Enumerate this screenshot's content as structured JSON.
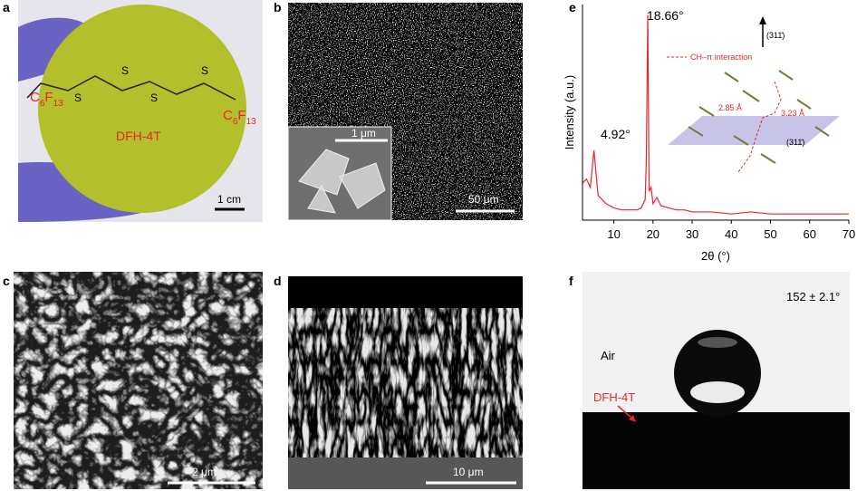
{
  "panels": {
    "a": {
      "label": "a",
      "substituent_left": [
        "C",
        "6",
        "F",
        "13"
      ],
      "substituent_right": [
        "C",
        "6",
        "F",
        "13"
      ],
      "sulfur": [
        "S",
        "S",
        "S",
        "S"
      ],
      "compound": "DFH-4T",
      "scale_bar": "1 cm"
    },
    "b": {
      "label": "b",
      "inset_scale_bar": "1 μm",
      "scale_bar": "50 μm"
    },
    "c": {
      "label": "c",
      "scale_bar": "2 μm"
    },
    "d": {
      "label": "d",
      "scale_bar": "10 μm"
    },
    "e": {
      "label": "e",
      "peak_labels": [
        "18.66°",
        "4.92°"
      ],
      "inset": {
        "legend": "CH–π interaction",
        "direction": "(311̄)",
        "plane": "(311̄)",
        "distances": [
          "3.23 Å",
          "2.85 Å"
        ]
      }
    },
    "f": {
      "label": "f",
      "contact_angle": "152 ± 2.1°",
      "medium": "Air",
      "film": "DFH-4T"
    }
  },
  "chart_data": {
    "type": "line",
    "xlabel": "2θ (°)",
    "ylabel": "Intensity (a.u.)",
    "xlim": [
      2,
      70
    ],
    "xticks": [
      10,
      20,
      30,
      40,
      50,
      60,
      70
    ],
    "ylim": [
      0,
      105
    ],
    "color": "#e8262b",
    "x": [
      2,
      3,
      4,
      4.92,
      5.5,
      6,
      7,
      8,
      10,
      12,
      14,
      16,
      17,
      18,
      18.3,
      18.66,
      19,
      19.5,
      20,
      21,
      22,
      24,
      26,
      28,
      30,
      35,
      40,
      45,
      50,
      55,
      60,
      65,
      70
    ],
    "values": [
      18,
      20,
      16,
      34,
      22,
      12,
      10,
      8,
      6,
      5,
      5,
      5,
      6,
      10,
      30,
      100,
      14,
      16,
      8,
      11,
      7,
      6,
      5,
      5,
      4,
      4,
      3,
      4,
      3,
      3,
      3,
      3,
      3
    ]
  }
}
